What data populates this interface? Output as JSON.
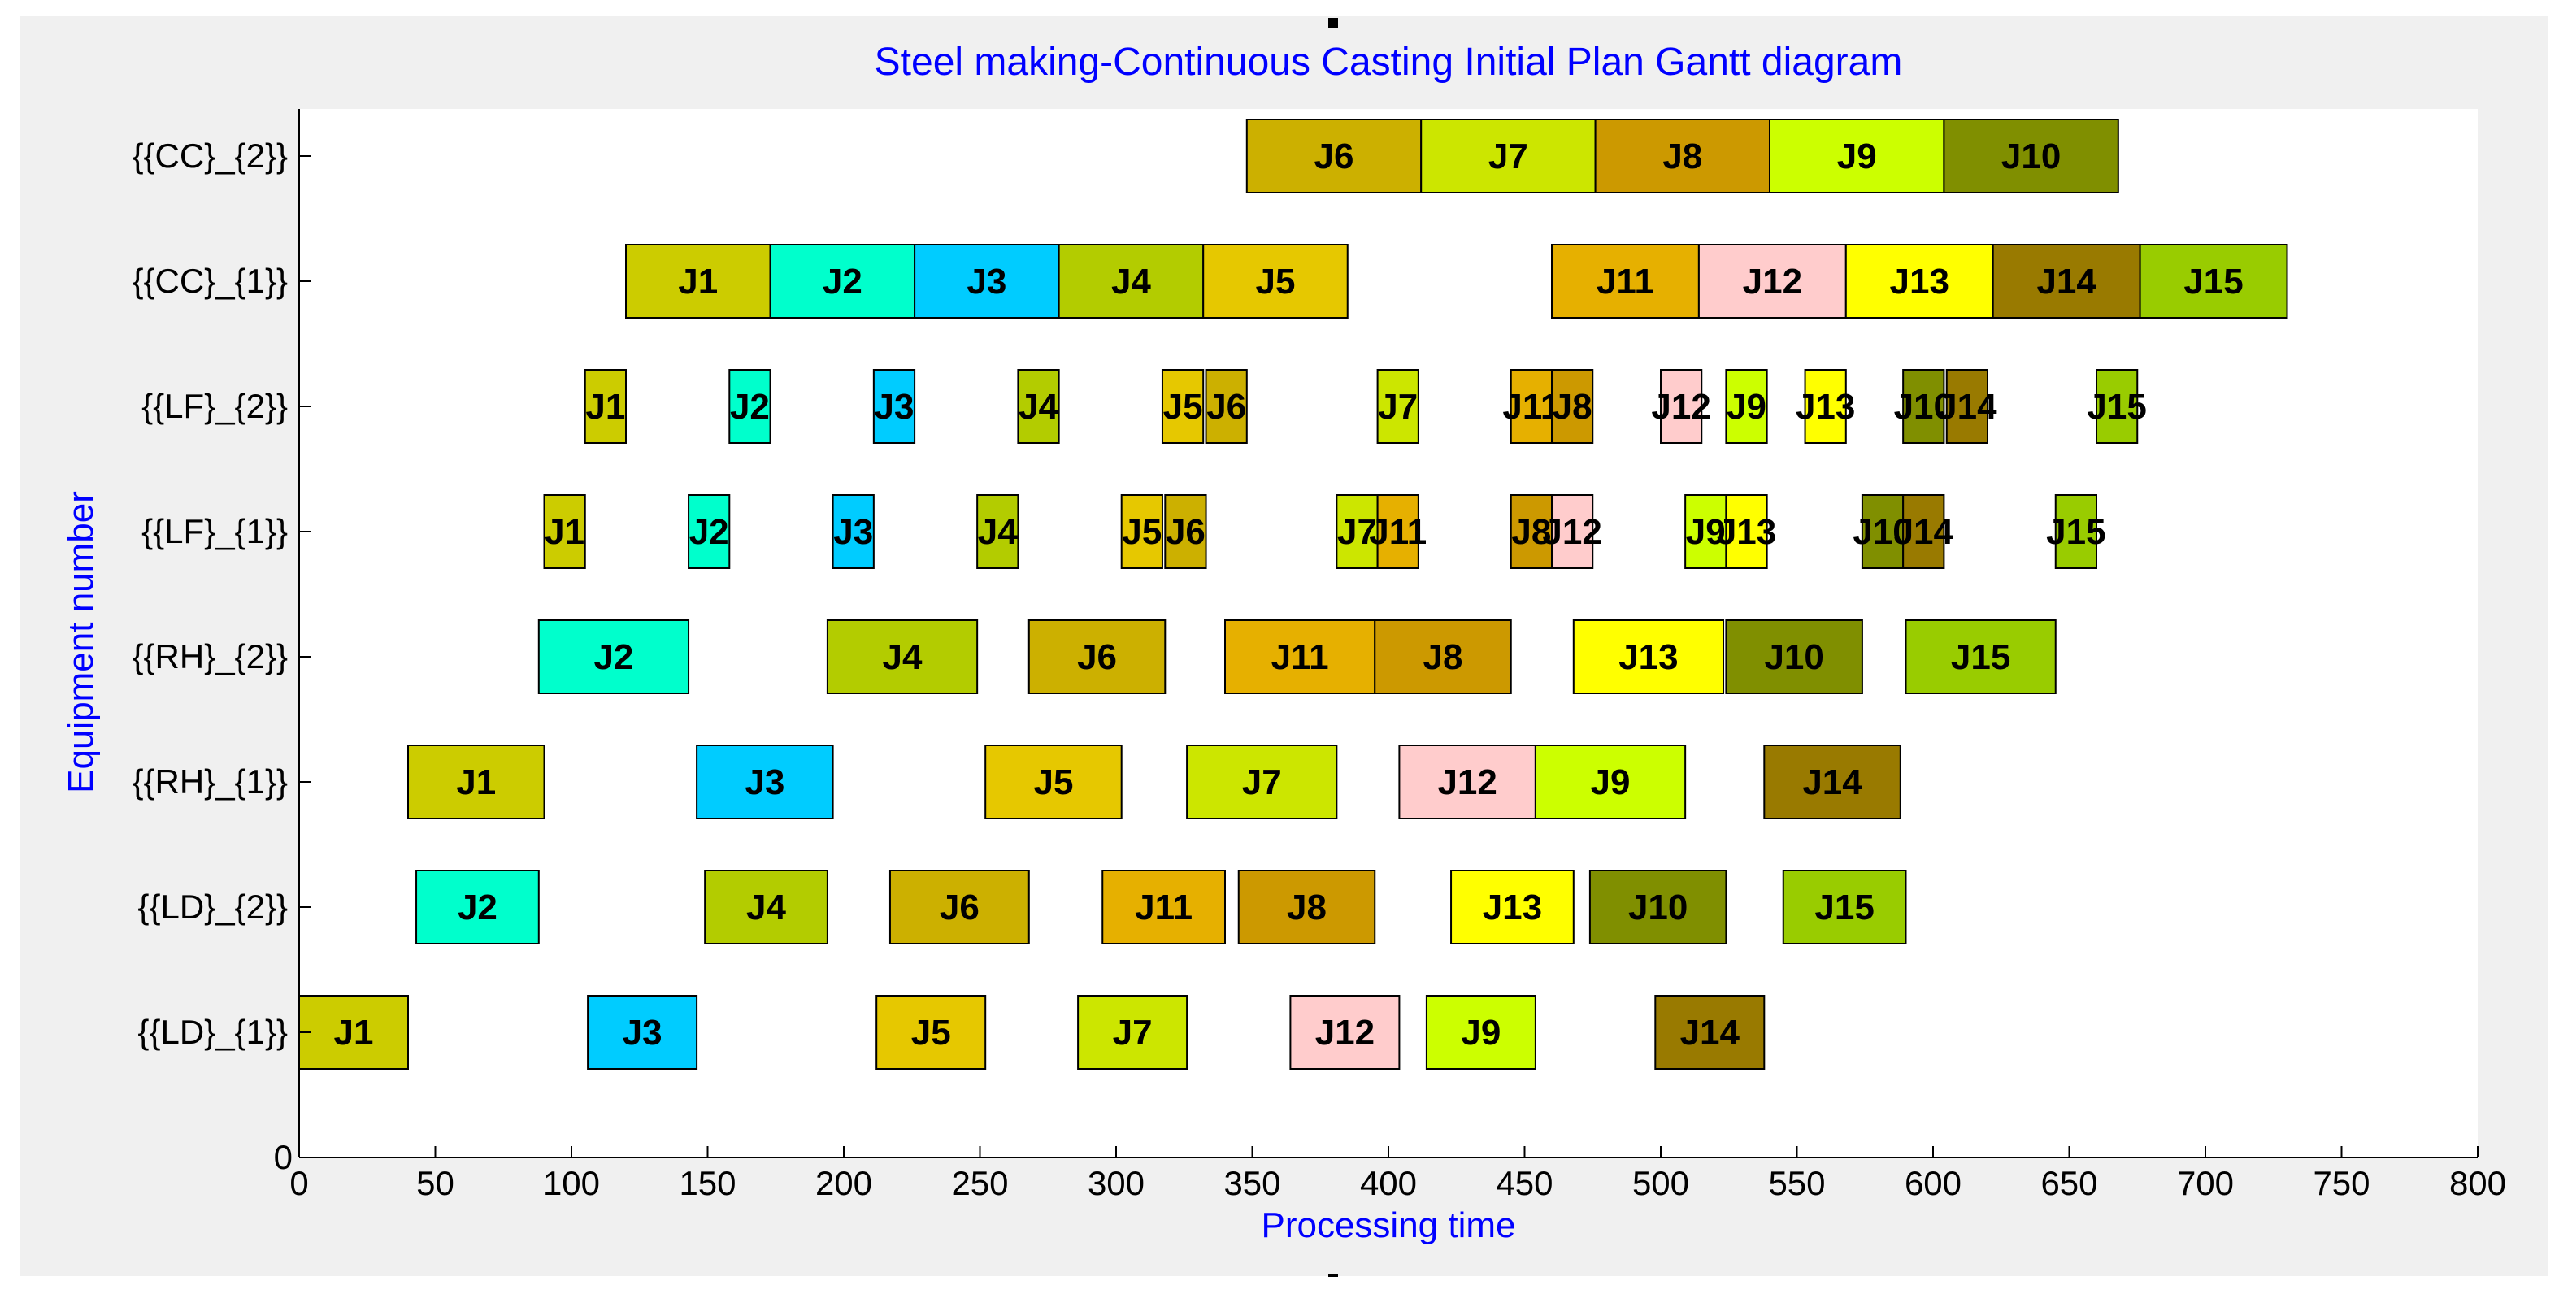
{
  "chart_data": {
    "type": "gantt",
    "title": "Steel making-Continuous Casting Initial Plan Gantt diagram",
    "xlabel": "Processing time",
    "ylabel": "Equipment number",
    "xlim": [
      0,
      800
    ],
    "xticks": [
      0,
      50,
      100,
      150,
      200,
      250,
      300,
      350,
      400,
      450,
      500,
      550,
      600,
      650,
      700,
      750,
      800
    ],
    "y_zero_label": "0",
    "machines": [
      "{{LD}_{1}}",
      "{{LD}_{2}}",
      "{{RH}_{1}}",
      "{{RH}_{2}}",
      "{{LF}_{1}}",
      "{{LF}_{2}}",
      "{{CC}_{1}}",
      "{{CC}_{2}}"
    ],
    "job_colors": {
      "J1": "#cccc00",
      "J2": "#00ffcc",
      "J3": "#00ccff",
      "J4": "#b3cc00",
      "J5": "#e6c800",
      "J6": "#ccb000",
      "J7": "#cce600",
      "J8": "#cc9900",
      "J9": "#ccff00",
      "J10": "#808f00",
      "J11": "#e6b000",
      "J12": "#ffcccc",
      "J13": "#ffff00",
      "J14": "#997a00",
      "J15": "#99cc00"
    },
    "tasks": [
      {
        "machine": 0,
        "job": "J1",
        "start": 0,
        "end": 40
      },
      {
        "machine": 0,
        "job": "J3",
        "start": 106,
        "end": 146
      },
      {
        "machine": 0,
        "job": "J5",
        "start": 212,
        "end": 252
      },
      {
        "machine": 0,
        "job": "J7",
        "start": 286,
        "end": 326
      },
      {
        "machine": 0,
        "job": "J12",
        "start": 364,
        "end": 404
      },
      {
        "machine": 0,
        "job": "J9",
        "start": 414,
        "end": 454
      },
      {
        "machine": 0,
        "job": "J14",
        "start": 498,
        "end": 538
      },
      {
        "machine": 1,
        "job": "J2",
        "start": 43,
        "end": 88
      },
      {
        "machine": 1,
        "job": "J4",
        "start": 149,
        "end": 194
      },
      {
        "machine": 1,
        "job": "J6",
        "start": 217,
        "end": 268
      },
      {
        "machine": 1,
        "job": "J11",
        "start": 295,
        "end": 340
      },
      {
        "machine": 1,
        "job": "J8",
        "start": 345,
        "end": 395
      },
      {
        "machine": 1,
        "job": "J13",
        "start": 423,
        "end": 468
      },
      {
        "machine": 1,
        "job": "J10",
        "start": 474,
        "end": 524
      },
      {
        "machine": 1,
        "job": "J15",
        "start": 545,
        "end": 590
      },
      {
        "machine": 2,
        "job": "J1",
        "start": 40,
        "end": 90
      },
      {
        "machine": 2,
        "job": "J3",
        "start": 146,
        "end": 196
      },
      {
        "machine": 2,
        "job": "J5",
        "start": 252,
        "end": 302
      },
      {
        "machine": 2,
        "job": "J7",
        "start": 326,
        "end": 381
      },
      {
        "machine": 2,
        "job": "J12",
        "start": 404,
        "end": 454
      },
      {
        "machine": 2,
        "job": "J9",
        "start": 454,
        "end": 509
      },
      {
        "machine": 2,
        "job": "J14",
        "start": 538,
        "end": 588
      },
      {
        "machine": 3,
        "job": "J2",
        "start": 88,
        "end": 143
      },
      {
        "machine": 3,
        "job": "J4",
        "start": 194,
        "end": 249
      },
      {
        "machine": 3,
        "job": "J6",
        "start": 268,
        "end": 318
      },
      {
        "machine": 3,
        "job": "J11",
        "start": 340,
        "end": 395
      },
      {
        "machine": 3,
        "job": "J8",
        "start": 395,
        "end": 445
      },
      {
        "machine": 3,
        "job": "J13",
        "start": 468,
        "end": 523
      },
      {
        "machine": 3,
        "job": "J10",
        "start": 524,
        "end": 574
      },
      {
        "machine": 3,
        "job": "J15",
        "start": 590,
        "end": 645
      },
      {
        "machine": 4,
        "job": "J1",
        "start": 90,
        "end": 105
      },
      {
        "machine": 4,
        "job": "J2",
        "start": 143,
        "end": 158
      },
      {
        "machine": 4,
        "job": "J3",
        "start": 196,
        "end": 211
      },
      {
        "machine": 4,
        "job": "J4",
        "start": 249,
        "end": 264
      },
      {
        "machine": 4,
        "job": "J5",
        "start": 302,
        "end": 317
      },
      {
        "machine": 4,
        "job": "J6",
        "start": 318,
        "end": 333
      },
      {
        "machine": 4,
        "job": "J7",
        "start": 381,
        "end": 396
      },
      {
        "machine": 4,
        "job": "J11",
        "start": 396,
        "end": 411
      },
      {
        "machine": 4,
        "job": "J8",
        "start": 445,
        "end": 460
      },
      {
        "machine": 4,
        "job": "J12",
        "start": 460,
        "end": 475
      },
      {
        "machine": 4,
        "job": "J9",
        "start": 509,
        "end": 524
      },
      {
        "machine": 4,
        "job": "J13",
        "start": 524,
        "end": 539
      },
      {
        "machine": 4,
        "job": "J10",
        "start": 574,
        "end": 589
      },
      {
        "machine": 4,
        "job": "J14",
        "start": 589,
        "end": 604
      },
      {
        "machine": 4,
        "job": "J15",
        "start": 645,
        "end": 660
      },
      {
        "machine": 5,
        "job": "J1",
        "start": 105,
        "end": 120
      },
      {
        "machine": 5,
        "job": "J2",
        "start": 158,
        "end": 173
      },
      {
        "machine": 5,
        "job": "J3",
        "start": 211,
        "end": 226
      },
      {
        "machine": 5,
        "job": "J4",
        "start": 264,
        "end": 279
      },
      {
        "machine": 5,
        "job": "J5",
        "start": 317,
        "end": 332
      },
      {
        "machine": 5,
        "job": "J6",
        "start": 333,
        "end": 348
      },
      {
        "machine": 5,
        "job": "J7",
        "start": 396,
        "end": 411
      },
      {
        "machine": 5,
        "job": "J11",
        "start": 445,
        "end": 460
      },
      {
        "machine": 5,
        "job": "J8",
        "start": 460,
        "end": 475
      },
      {
        "machine": 5,
        "job": "J12",
        "start": 500,
        "end": 515
      },
      {
        "machine": 5,
        "job": "J9",
        "start": 524,
        "end": 539
      },
      {
        "machine": 5,
        "job": "J13",
        "start": 553,
        "end": 568
      },
      {
        "machine": 5,
        "job": "J10",
        "start": 589,
        "end": 604
      },
      {
        "machine": 5,
        "job": "J14",
        "start": 605,
        "end": 620
      },
      {
        "machine": 5,
        "job": "J15",
        "start": 660,
        "end": 675
      },
      {
        "machine": 6,
        "job": "J1",
        "start": 120,
        "end": 173
      },
      {
        "machine": 6,
        "job": "J2",
        "start": 173,
        "end": 226
      },
      {
        "machine": 6,
        "job": "J3",
        "start": 226,
        "end": 279
      },
      {
        "machine": 6,
        "job": "J4",
        "start": 279,
        "end": 332
      },
      {
        "machine": 6,
        "job": "J5",
        "start": 332,
        "end": 385
      },
      {
        "machine": 6,
        "job": "J11",
        "start": 460,
        "end": 514
      },
      {
        "machine": 6,
        "job": "J12",
        "start": 514,
        "end": 568
      },
      {
        "machine": 6,
        "job": "J13",
        "start": 568,
        "end": 622
      },
      {
        "machine": 6,
        "job": "J14",
        "start": 622,
        "end": 676
      },
      {
        "machine": 6,
        "job": "J15",
        "start": 676,
        "end": 730
      },
      {
        "machine": 7,
        "job": "J6",
        "start": 348,
        "end": 412
      },
      {
        "machine": 7,
        "job": "J7",
        "start": 412,
        "end": 476
      },
      {
        "machine": 7,
        "job": "J8",
        "start": 476,
        "end": 540
      },
      {
        "machine": 7,
        "job": "J9",
        "start": 540,
        "end": 604
      },
      {
        "machine": 7,
        "job": "J10",
        "start": 604,
        "end": 668
      }
    ]
  }
}
